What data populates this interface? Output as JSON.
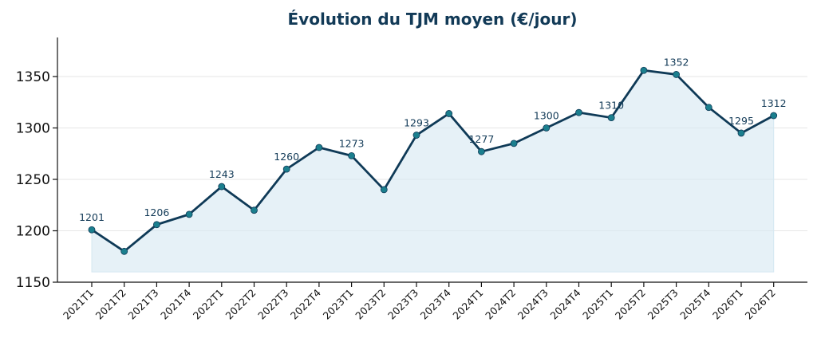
{
  "chart_data": {
    "type": "line",
    "title": "Évolution du TJM moyen (€/jour)",
    "xlabel": "",
    "ylabel": "",
    "categories": [
      "2021T1",
      "2021T2",
      "2021T3",
      "2021T4",
      "2022T1",
      "2022T2",
      "2022T3",
      "2022T4",
      "2023T1",
      "2023T2",
      "2023T3",
      "2023T4",
      "2024T1",
      "2024T2",
      "2024T3",
      "2024T4",
      "2025T1",
      "2025T2",
      "2025T3",
      "2025T4",
      "2026T1",
      "2026T2"
    ],
    "series": [
      {
        "values": [
          1201,
          1180,
          1206,
          1216,
          1243,
          1220,
          1260,
          1281,
          1273,
          1240,
          1293,
          1314,
          1277,
          1285,
          1300,
          1315,
          1310,
          1356,
          1352,
          1320,
          1295,
          1312
        ]
      }
    ],
    "data_labels": [
      {
        "index": 0,
        "text": "1201"
      },
      {
        "index": 2,
        "text": "1206"
      },
      {
        "index": 4,
        "text": "1243"
      },
      {
        "index": 6,
        "text": "1260"
      },
      {
        "index": 8,
        "text": "1273"
      },
      {
        "index": 10,
        "text": "1293"
      },
      {
        "index": 12,
        "text": "1277"
      },
      {
        "index": 14,
        "text": "1300"
      },
      {
        "index": 16,
        "text": "1310"
      },
      {
        "index": 18,
        "text": "1352"
      },
      {
        "index": 20,
        "text": "1295"
      },
      {
        "index": 21,
        "text": "1312"
      }
    ],
    "yticks": [
      1150,
      1200,
      1250,
      1300,
      1350
    ],
    "ylim": [
      1150,
      1388
    ],
    "area_baseline": 1160,
    "grid": "horizontal",
    "legend": "none",
    "colors": {
      "line": "#0f3a57",
      "marker": "#1b7f8e",
      "fill": "#d5e8f2",
      "grid": "#e6e6e6",
      "axis": "#111111"
    }
  }
}
